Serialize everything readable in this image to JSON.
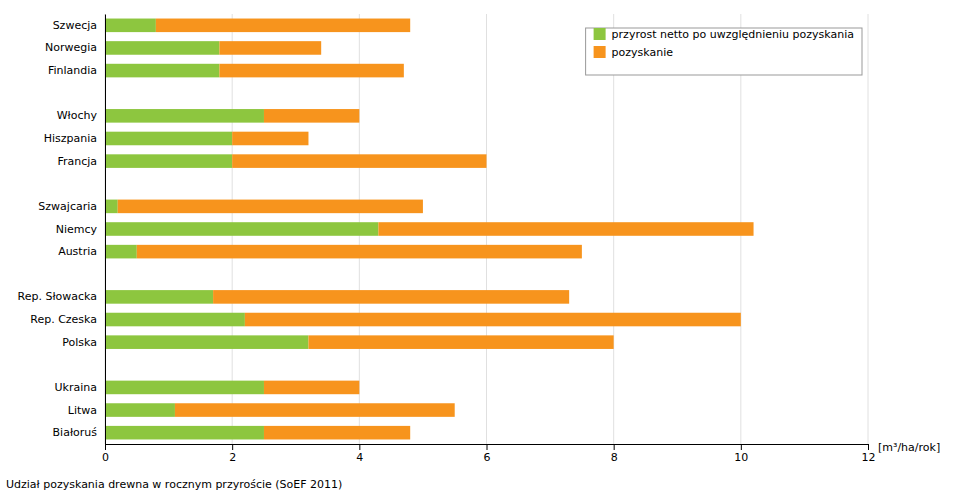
{
  "chart_data": {
    "type": "bar",
    "orientation": "horizontal",
    "stacked": true,
    "categories": [
      "Szwecja",
      "Norwegia",
      "Finlandia",
      null,
      "Włochy",
      "Hiszpania",
      "Francja",
      null,
      "Szwajcaria",
      "Niemcy",
      "Austria",
      null,
      "Rep. Słowacka",
      "Rep. Czeska",
      "Polska",
      null,
      "Ukraina",
      "Litwa",
      "Białoruś"
    ],
    "series": [
      {
        "name": "przyrost netto po uwzględnieniu pozyskania",
        "color": "#8DC63F",
        "values": [
          0.8,
          1.8,
          1.8,
          null,
          2.5,
          2.0,
          2.0,
          null,
          0.2,
          4.3,
          0.5,
          null,
          1.7,
          2.2,
          3.2,
          null,
          2.5,
          1.1,
          2.5
        ]
      },
      {
        "name": "pozyskanie",
        "color": "#F7941D",
        "values": [
          4.0,
          1.6,
          2.9,
          null,
          1.5,
          1.2,
          4.0,
          null,
          4.8,
          5.9,
          7.0,
          null,
          5.6,
          7.8,
          4.8,
          null,
          1.5,
          4.4,
          2.3
        ]
      }
    ],
    "x_label": "[m³/ha/rok]",
    "annotations": [
      "Udział pozyskania drewna w rocznym przyroście (SoEF 2011)"
    ],
    "xlim": [
      0,
      12
    ],
    "xticks": [
      0,
      2,
      4,
      6,
      8,
      10,
      12
    ],
    "grid": true,
    "legend": "top-right"
  }
}
